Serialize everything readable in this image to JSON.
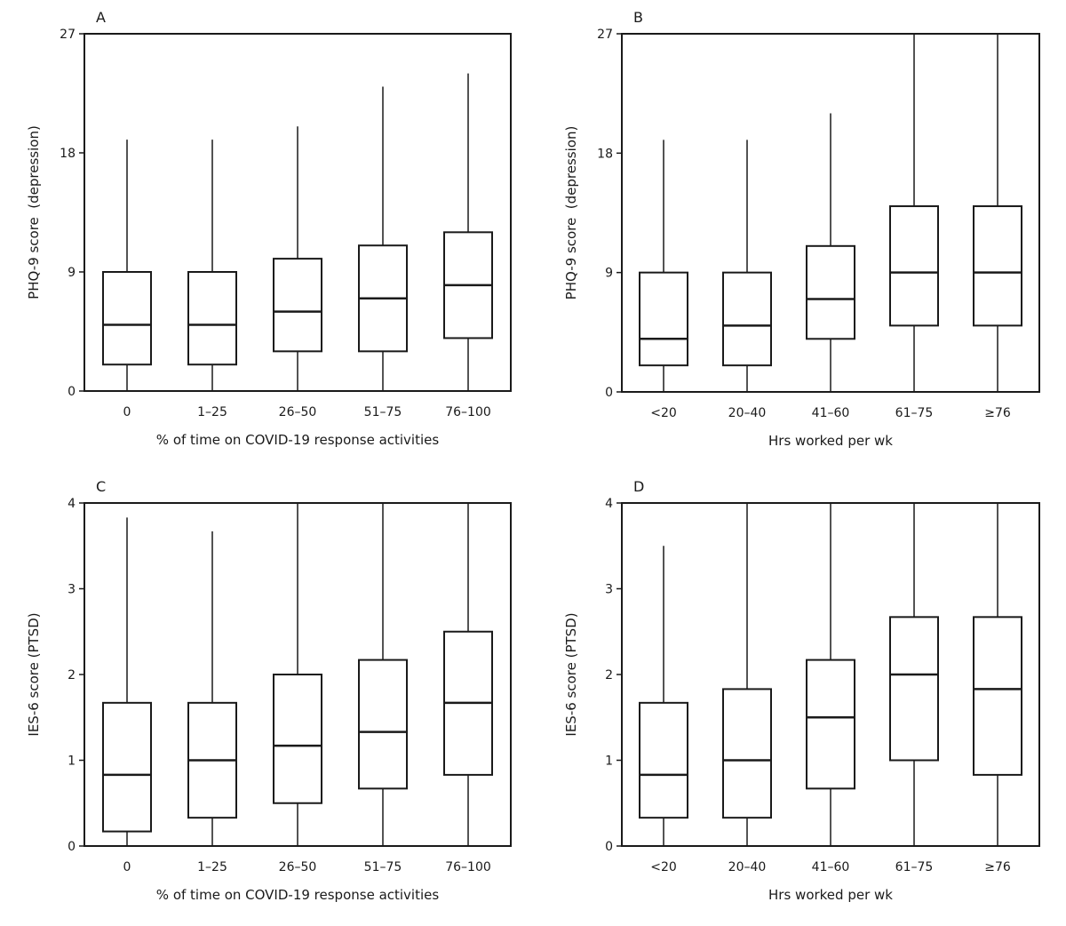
{
  "chart_data": [
    {
      "panel_label": "A",
      "type": "box",
      "categories": [
        "0",
        "1–25",
        "26–50",
        "51–75",
        "76–100"
      ],
      "boxes": [
        {
          "min": 0,
          "q1": 2,
          "median": 5,
          "q3": 9,
          "max": 19
        },
        {
          "min": 0,
          "q1": 2,
          "median": 5,
          "q3": 9,
          "max": 19
        },
        {
          "min": 0,
          "q1": 3,
          "median": 6,
          "q3": 10,
          "max": 20
        },
        {
          "min": 0,
          "q1": 3,
          "median": 7,
          "q3": 11,
          "max": 23
        },
        {
          "min": 0,
          "q1": 4,
          "median": 8,
          "q3": 12,
          "max": 24
        }
      ],
      "yticks": [
        0,
        9,
        18,
        27
      ],
      "ylim": [
        0,
        27
      ],
      "xlabel": "% of time on COVID-19 response activities",
      "ylabel": "PHQ-9 score  (depression)"
    },
    {
      "panel_label": "B",
      "type": "box",
      "categories": [
        "<20",
        "20–40",
        "41–60",
        "61–75",
        "≥76"
      ],
      "boxes": [
        {
          "min": 0,
          "q1": 2,
          "median": 4,
          "q3": 9,
          "max": 19
        },
        {
          "min": 0,
          "q1": 2,
          "median": 5,
          "q3": 9,
          "max": 19
        },
        {
          "min": 0,
          "q1": 4,
          "median": 7,
          "q3": 11,
          "max": 21
        },
        {
          "min": 0,
          "q1": 5,
          "median": 9,
          "q3": 14,
          "max": 27
        },
        {
          "min": 0,
          "q1": 5,
          "median": 9,
          "q3": 14,
          "max": 27
        }
      ],
      "yticks": [
        0,
        9,
        18,
        27
      ],
      "ylim": [
        0,
        27
      ],
      "xlabel": "Hrs worked per wk",
      "ylabel": "PHQ-9 score  (depression)"
    },
    {
      "panel_label": "C",
      "type": "box",
      "categories": [
        "0",
        "1–25",
        "26–50",
        "51–75",
        "76–100"
      ],
      "boxes": [
        {
          "min": 0,
          "q1": 0.17,
          "median": 0.83,
          "q3": 1.67,
          "max": 3.83
        },
        {
          "min": 0,
          "q1": 0.33,
          "median": 1.0,
          "q3": 1.67,
          "max": 3.67
        },
        {
          "min": 0,
          "q1": 0.5,
          "median": 1.17,
          "q3": 2.0,
          "max": 4.0
        },
        {
          "min": 0,
          "q1": 0.67,
          "median": 1.33,
          "q3": 2.17,
          "max": 4.0
        },
        {
          "min": 0,
          "q1": 0.83,
          "median": 1.67,
          "q3": 2.5,
          "max": 4.0
        }
      ],
      "yticks": [
        0,
        1,
        2,
        3,
        4
      ],
      "ylim": [
        0,
        4
      ],
      "xlabel": "% of time on COVID-19 response activities",
      "ylabel": "IES-6 score (PTSD)"
    },
    {
      "panel_label": "D",
      "type": "box",
      "categories": [
        "<20",
        "20–40",
        "41–60",
        "61–75",
        "≥76"
      ],
      "boxes": [
        {
          "min": 0,
          "q1": 0.33,
          "median": 0.83,
          "q3": 1.67,
          "max": 3.5
        },
        {
          "min": 0,
          "q1": 0.33,
          "median": 1.0,
          "q3": 1.83,
          "max": 4.0
        },
        {
          "min": 0,
          "q1": 0.67,
          "median": 1.5,
          "q3": 2.17,
          "max": 4.0
        },
        {
          "min": 0,
          "q1": 1.0,
          "median": 2.0,
          "q3": 2.67,
          "max": 4.0
        },
        {
          "min": 0,
          "q1": 0.83,
          "median": 1.83,
          "q3": 2.67,
          "max": 4.0
        }
      ],
      "yticks": [
        0,
        1,
        2,
        3,
        4
      ],
      "ylim": [
        0,
        4
      ],
      "xlabel": "Hrs worked per wk",
      "ylabel": "IES-6 score (PTSD)"
    }
  ]
}
